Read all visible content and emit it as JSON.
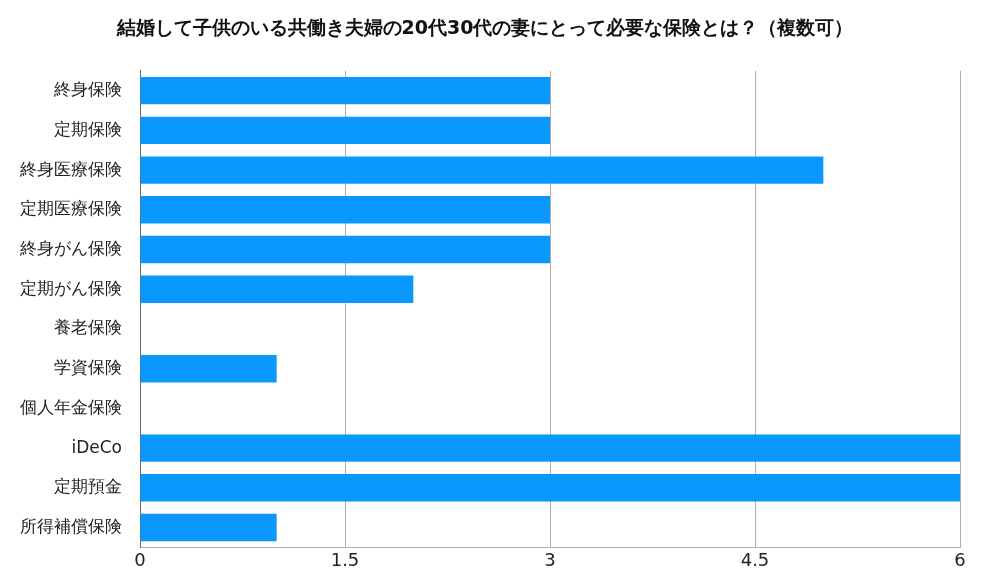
{
  "chart_data": {
    "type": "bar",
    "orientation": "horizontal",
    "title": "結婚して子供のいる共働き夫婦の20代30代の妻にとって必要な保険とは？（複数可）",
    "categories": [
      "終身保険",
      "定期保険",
      "終身医療保険",
      "定期医療保険",
      "終身がん保険",
      "定期がん保険",
      "養老保険",
      "学資保険",
      "個人年金保険",
      "iDeCo",
      "定期預金",
      "所得補償保険"
    ],
    "values": [
      3,
      3,
      5,
      3,
      3,
      2,
      0,
      1,
      0,
      6,
      6,
      1
    ],
    "color": "#0a98ff",
    "xlim": [
      0,
      6
    ],
    "xticks": [
      0,
      1.5,
      3,
      4.5,
      6
    ],
    "grid": true
  }
}
